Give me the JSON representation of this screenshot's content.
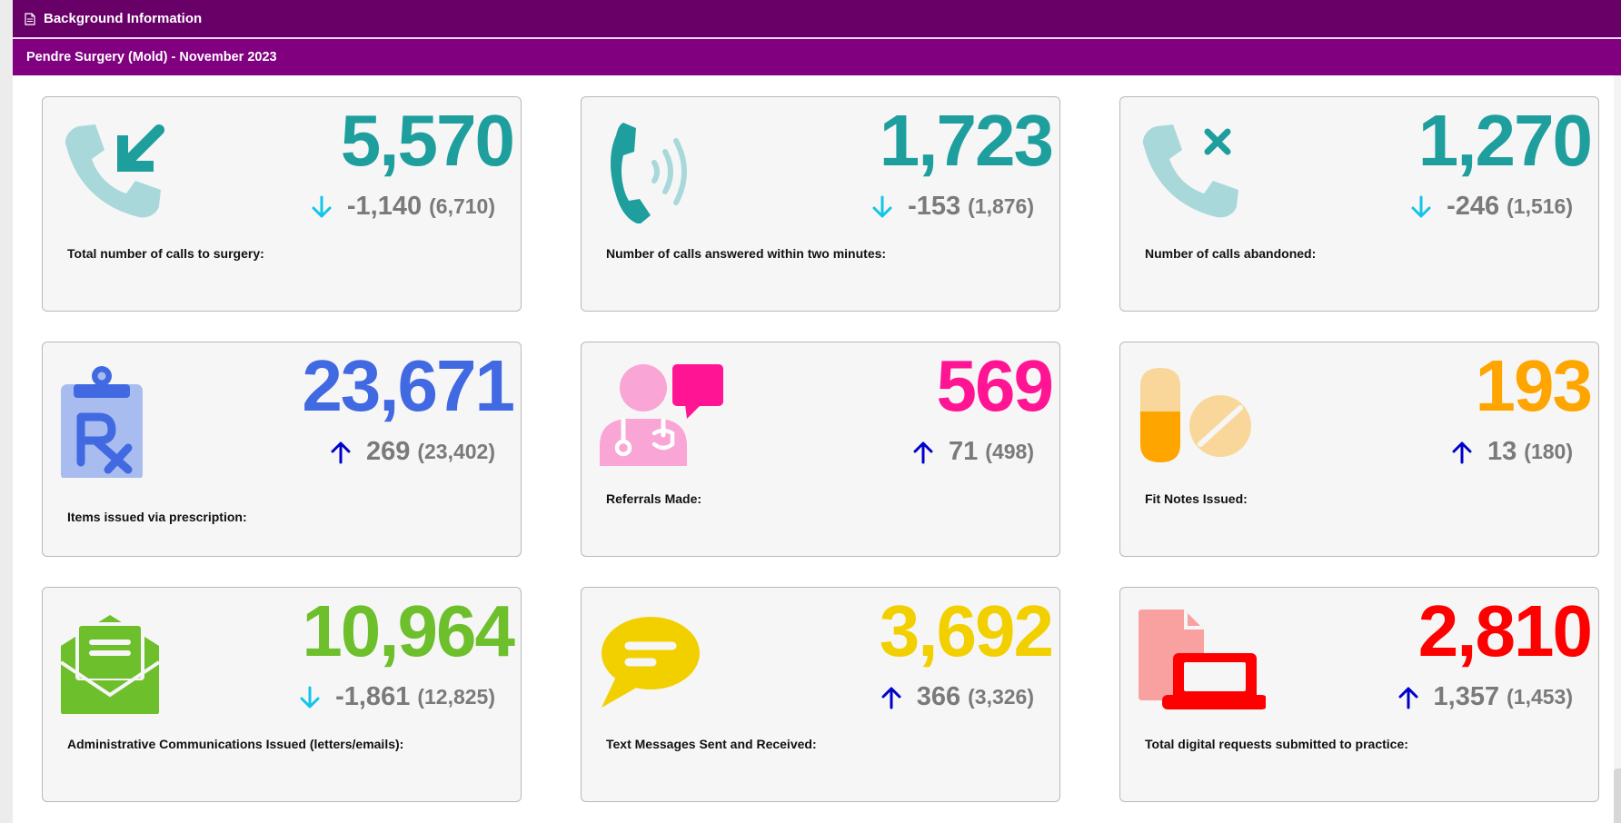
{
  "header": {
    "title": "Background Information",
    "subtitle": "Pendre Surgery (Mold) - November 2023"
  },
  "colors": {
    "header_dark": "#680068",
    "header": "#800080",
    "teal": "#1f9e9e",
    "teal_light": "#a9d8da",
    "blue": "#4169e1",
    "pink": "#ff1493",
    "orange": "#ffa500",
    "green": "#6dbf2c",
    "yellow": "#f2d000",
    "red": "#ff0000",
    "down_arrow": "#12c5e8",
    "up_arrow": "#0000cc",
    "delta_text": "#7a7a7a"
  },
  "cards": [
    {
      "icon": "phone-incoming-icon",
      "value": "5,570",
      "trend": "down",
      "diff": "-1,140",
      "previous": "(6,710)",
      "label": "Total number of calls to surgery:",
      "value_color": "#1f9e9e"
    },
    {
      "icon": "phone-ringing-icon",
      "value": "1,723",
      "trend": "down",
      "diff": "-153",
      "previous": "(1,876)",
      "label": "Number of calls answered within two minutes:",
      "value_color": "#1f9e9e"
    },
    {
      "icon": "phone-missed-icon",
      "value": "1,270",
      "trend": "down",
      "diff": "-246",
      "previous": "(1,516)",
      "label": "Number of calls abandoned:",
      "value_color": "#1f9e9e"
    },
    {
      "icon": "prescription-clipboard-icon",
      "value": "23,671",
      "trend": "up",
      "diff": "269",
      "previous": "(23,402)",
      "label": "Items issued via prescription:",
      "value_color": "#4169e1"
    },
    {
      "icon": "doctor-chat-icon",
      "value": "569",
      "trend": "up",
      "diff": "71",
      "previous": "(498)",
      "label": "Referrals Made:",
      "value_color": "#ff1493"
    },
    {
      "icon": "pills-icon",
      "value": "193",
      "trend": "up",
      "diff": "13",
      "previous": "(180)",
      "label": "Fit Notes Issued:",
      "value_color": "#ffa500"
    },
    {
      "icon": "envelope-open-icon",
      "value": "10,964",
      "trend": "down",
      "diff": "-1,861",
      "previous": "(12,825)",
      "label": "Administrative Communications Issued (letters/emails):",
      "value_color": "#6dbf2c"
    },
    {
      "icon": "message-bubble-icon",
      "value": "3,692",
      "trend": "up",
      "diff": "366",
      "previous": "(3,326)",
      "label": "Text Messages Sent and Received:",
      "value_color": "#f2d000"
    },
    {
      "icon": "digital-request-icon",
      "value": "2,810",
      "trend": "up",
      "diff": "1,357",
      "previous": "(1,453)",
      "label": "Total digital requests submitted to practice:",
      "value_color": "#ff0000"
    }
  ]
}
